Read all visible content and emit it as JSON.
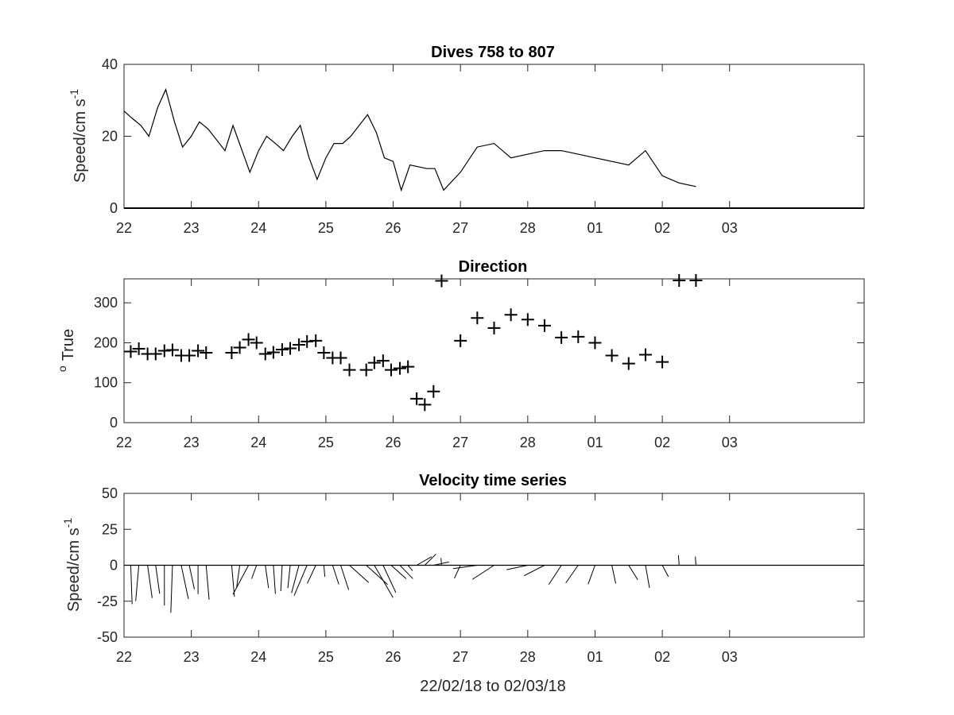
{
  "chart_data": [
    {
      "type": "line",
      "title": "Dives 758 to 807",
      "ylabel": "Speed/cm s",
      "ylabel_sup": "-1",
      "xlim": [
        22,
        33
      ],
      "ylim": [
        0,
        40
      ],
      "yticks": [
        0,
        20,
        40
      ],
      "xtick_labels": [
        "22",
        "23",
        "24",
        "25",
        "26",
        "27",
        "28",
        "01",
        "02",
        "03"
      ],
      "x": [
        22.0,
        22.12,
        22.25,
        22.37,
        22.5,
        22.62,
        22.75,
        22.87,
        23.0,
        23.12,
        23.25,
        23.5,
        23.62,
        23.87,
        24.0,
        24.12,
        24.25,
        24.37,
        24.5,
        24.62,
        24.75,
        24.87,
        25.0,
        25.12,
        25.25,
        25.37,
        25.62,
        25.75,
        25.87,
        26.0,
        26.12,
        26.25,
        26.5,
        26.62,
        26.75,
        27.0,
        27.25,
        27.5,
        27.75,
        28.0,
        28.25,
        28.5,
        28.75,
        29.0,
        29.25,
        29.5,
        29.75,
        30.0,
        30.25,
        30.5
      ],
      "y": [
        27,
        25,
        23,
        20,
        28,
        33,
        24,
        17,
        20,
        24,
        22,
        16,
        23,
        10,
        16,
        20,
        18,
        16,
        20,
        23,
        14,
        8,
        14,
        18,
        18,
        20,
        26,
        21,
        14,
        13,
        5,
        12,
        11,
        11,
        5,
        10,
        17,
        18,
        14,
        15,
        16,
        16,
        15,
        14,
        13,
        12,
        16,
        9,
        7,
        6
      ],
      "zero_line": true
    },
    {
      "type": "scatter",
      "title": "Direction",
      "ylabel": "True",
      "ylabel_prefix": "o",
      "xlim": [
        22,
        33
      ],
      "ylim": [
        0,
        360
      ],
      "yticks": [
        0,
        100,
        200,
        300
      ],
      "xtick_labels": [
        "22",
        "23",
        "24",
        "25",
        "26",
        "27",
        "28",
        "01",
        "02",
        "03"
      ],
      "marker": "+",
      "x": [
        22.1,
        22.22,
        22.35,
        22.47,
        22.6,
        22.72,
        22.85,
        22.97,
        23.1,
        23.22,
        23.6,
        23.72,
        23.85,
        23.97,
        24.1,
        24.22,
        24.35,
        24.47,
        24.6,
        24.72,
        24.85,
        24.97,
        25.1,
        25.22,
        25.35,
        25.6,
        25.72,
        25.85,
        25.97,
        26.1,
        26.22,
        26.35,
        26.47,
        26.6,
        26.72,
        27.0,
        27.25,
        27.5,
        27.75,
        28.0,
        28.25,
        28.5,
        28.75,
        29.0,
        29.25,
        29.5,
        29.75,
        30.0,
        30.25,
        30.5
      ],
      "y": [
        178,
        185,
        172,
        172,
        180,
        182,
        168,
        168,
        180,
        175,
        175,
        188,
        208,
        200,
        172,
        176,
        183,
        186,
        195,
        203,
        205,
        175,
        162,
        162,
        132,
        132,
        150,
        155,
        132,
        136,
        140,
        60,
        45,
        78,
        355,
        205,
        262,
        237,
        270,
        258,
        243,
        213,
        215,
        200,
        168,
        148,
        170,
        152,
        356,
        356
      ]
    },
    {
      "type": "vector",
      "title": "Velocity time series",
      "ylabel": "Speed/cm s",
      "ylabel_sup": "-1",
      "xlabel": "22/02/18 to 02/03/18",
      "xlim": [
        22,
        33
      ],
      "ylim": [
        -50,
        50
      ],
      "yticks": [
        -50,
        -25,
        0,
        25,
        50
      ],
      "xtick_labels": [
        "22",
        "23",
        "24",
        "25",
        "26",
        "27",
        "28",
        "01",
        "02",
        "03"
      ],
      "x": [
        22.1,
        22.22,
        22.35,
        22.47,
        22.6,
        22.72,
        22.85,
        22.97,
        23.1,
        23.22,
        23.6,
        23.72,
        23.85,
        23.97,
        24.1,
        24.22,
        24.35,
        24.47,
        24.6,
        24.72,
        24.85,
        24.97,
        25.1,
        25.22,
        25.35,
        25.6,
        25.72,
        25.85,
        25.97,
        26.1,
        26.22,
        26.35,
        26.47,
        26.6,
        26.72,
        27.0,
        27.25,
        27.5,
        27.75,
        28.0,
        28.25,
        28.5,
        28.75,
        29.0,
        29.25,
        29.5,
        29.75,
        30.0,
        30.25,
        30.5
      ],
      "speed": [
        27,
        25,
        23,
        20,
        28,
        33,
        24,
        17,
        20,
        24,
        22,
        16,
        23,
        10,
        16,
        20,
        18,
        16,
        20,
        23,
        14,
        8,
        14,
        18,
        18,
        20,
        26,
        21,
        14,
        13,
        5,
        12,
        11,
        11,
        5,
        10,
        17,
        18,
        14,
        15,
        16,
        16,
        15,
        14,
        13,
        12,
        16,
        9,
        7,
        6
      ],
      "direction": [
        178,
        185,
        172,
        172,
        180,
        182,
        168,
        168,
        180,
        175,
        175,
        188,
        208,
        200,
        172,
        176,
        183,
        186,
        195,
        203,
        205,
        175,
        162,
        162,
        132,
        132,
        150,
        155,
        132,
        136,
        140,
        60,
        45,
        78,
        355,
        205,
        262,
        237,
        270,
        258,
        243,
        213,
        215,
        200,
        168,
        148,
        170,
        152,
        356,
        356
      ],
      "zero_line": true
    }
  ]
}
